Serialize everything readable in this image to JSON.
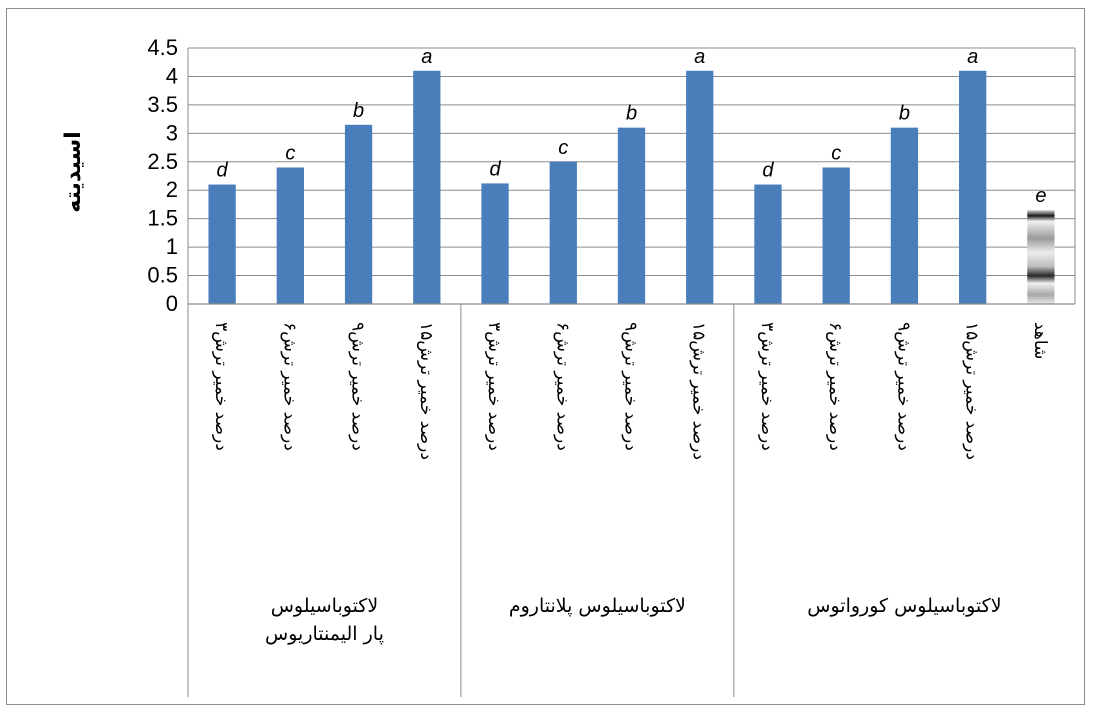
{
  "chart_data": {
    "type": "bar",
    "title": "",
    "ylabel": "اسیدیته",
    "xlabel": "",
    "ylim": [
      0,
      4.5
    ],
    "yticks": [
      "0",
      "0.5",
      "1",
      "1.5",
      "2",
      "2.5",
      "3",
      "3.5",
      "4",
      "4.5"
    ],
    "grid": true,
    "legend": "none",
    "bar_color": "#4a7ebb",
    "categories": [
      "۳درصد خمیر ترش",
      "۶درصد خمیر ترش",
      "۹درصد خمیر ترش",
      "۱۵درصد خمیر ترش",
      "۳درصد خمیر ترش",
      "۶درصد خمیر ترش",
      "۹درصد خمیر ترش",
      "۱۵درصد خمیر ترش",
      "۳درصد خمیر ترش",
      "۶درصد خمیر ترش",
      "۹درصد خمیر ترش",
      "۱۵درصد خمیر ترش",
      "شاهد"
    ],
    "groups": [
      {
        "label_lines": [
          "لاکتوباسیلوس",
          "پار الیمنتاریوس"
        ],
        "start": 0,
        "count": 4
      },
      {
        "label_lines": [
          "لاکتوباسیلوس پلانتاروم"
        ],
        "start": 4,
        "count": 4
      },
      {
        "label_lines": [
          "لاکتوباسیلوس کورواتوس"
        ],
        "start": 8,
        "count": 5
      }
    ],
    "values": [
      2.1,
      2.4,
      3.15,
      4.1,
      2.12,
      2.5,
      3.1,
      4.1,
      2.1,
      2.4,
      3.1,
      4.1,
      1.65
    ],
    "significance_letters": [
      "d",
      "c",
      "b",
      "a",
      "d",
      "c",
      "b",
      "a",
      "d",
      "c",
      "b",
      "a",
      "e"
    ]
  }
}
